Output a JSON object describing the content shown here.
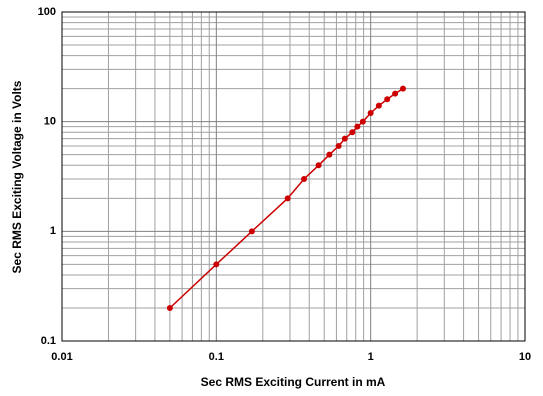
{
  "chart_data": {
    "type": "line",
    "xlabel": "Sec RMS Exciting Current in mA",
    "ylabel": "Sec RMS Exciting Voltage in Volts",
    "x": [
      0.05,
      0.1,
      0.17,
      0.29,
      0.37,
      0.46,
      0.54,
      0.62,
      0.68,
      0.76,
      0.82,
      0.89,
      1.0,
      1.13,
      1.28,
      1.44,
      1.62
    ],
    "series": [
      {
        "color": "#cc0000",
        "values": [
          0.2,
          0.5,
          1,
          2,
          3,
          4,
          5,
          6,
          7,
          8,
          9,
          10,
          12,
          14,
          16,
          18,
          20
        ]
      }
    ],
    "xlim": [
      0.01,
      10
    ],
    "xticks": [
      0.01,
      0.1,
      1,
      10
    ],
    "ylim": [
      0.1,
      100
    ],
    "yticks": [
      0.1,
      1,
      10,
      100
    ],
    "xscale": "log",
    "yscale": "log",
    "grid": true,
    "minor_grid": true
  }
}
